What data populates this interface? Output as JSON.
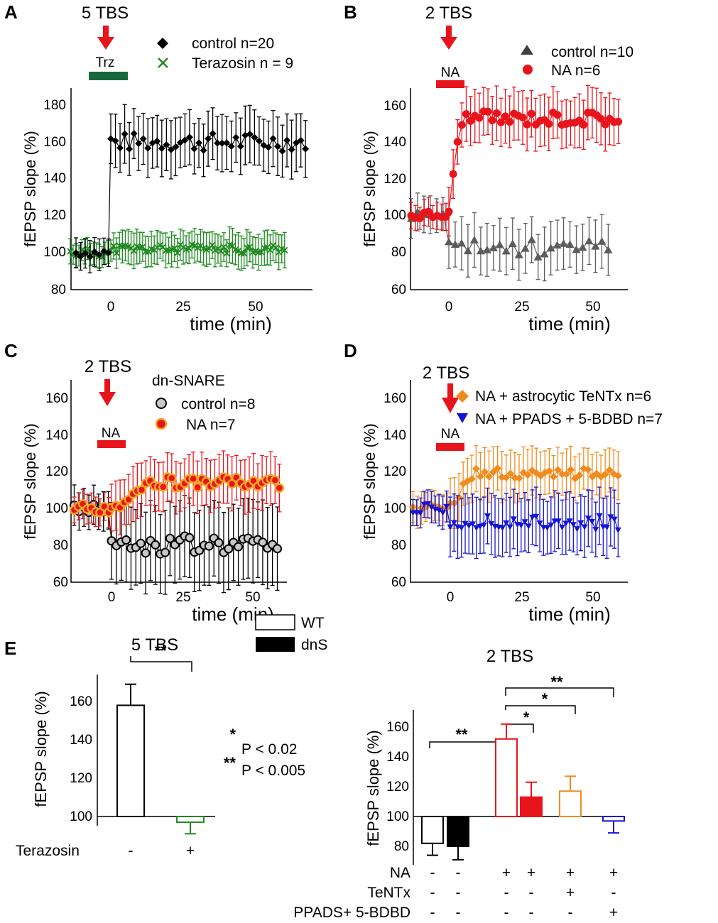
{
  "colors": {
    "black": "#000000",
    "green": "#1f8a1f",
    "red": "#e8141c",
    "gray": "#5c5c5c",
    "orange": "#f08c1e",
    "blue": "#1414d2",
    "darkgreen": "#17683c"
  },
  "chart_data": [
    {
      "panel": "A",
      "type": "line",
      "stim_label": "5 TBS",
      "bar_label": "Trz",
      "xlabel": "time (min)",
      "ylabel": "fEPSP slope (%)",
      "xticks": [
        "0",
        "25",
        "50"
      ],
      "yticks": [
        "80",
        "100",
        "120",
        "140",
        "160",
        "180"
      ],
      "xlim": [
        -14,
        70
      ],
      "ylim": [
        80,
        190
      ],
      "series": [
        {
          "name": "control",
          "legend": "control n=20",
          "baseline": 100,
          "pre_x": [
            -12,
            0
          ],
          "post_start": 0,
          "post_end": 68,
          "post_level": 160,
          "err": 13
        },
        {
          "name": "Terazosin",
          "legend": "Terazosin n = 9",
          "baseline": 100,
          "pre_x": [
            -14,
            0
          ],
          "post_start": 0,
          "post_end": 60,
          "post_level": 102,
          "err": 10
        }
      ]
    },
    {
      "panel": "B",
      "type": "line",
      "stim_label": "2 TBS",
      "bar_label": "NA",
      "xlabel": "time (min)",
      "ylabel": "fEPSP slope (%)",
      "xticks": [
        "0",
        "25",
        "50"
      ],
      "yticks": [
        "60",
        "80",
        "100",
        "120",
        "140",
        "160"
      ],
      "xlim": [
        -14,
        62
      ],
      "ylim": [
        60,
        170
      ],
      "series": [
        {
          "name": "control",
          "legend": "control n=10",
          "baseline": 100,
          "post_level": 82,
          "err": 12
        },
        {
          "name": "NA",
          "legend": "NA  n=6",
          "baseline": 100,
          "post_level": 153,
          "err": 12
        }
      ]
    },
    {
      "panel": "C",
      "type": "line",
      "stim_label": "2 TBS",
      "bar_label": "NA",
      "legend_title": "dn-SNARE",
      "xlabel": "time (min)",
      "ylabel": "fEPSP slope (%)",
      "xticks": [
        "0",
        "25",
        "50"
      ],
      "yticks": [
        "60",
        "80",
        "100",
        "120",
        "140",
        "160"
      ],
      "xlim": [
        -14,
        60
      ],
      "ylim": [
        60,
        170
      ],
      "series": [
        {
          "name": "control",
          "legend": "control  n=8",
          "baseline": 100,
          "post_level": 80,
          "err": 20
        },
        {
          "name": "NA",
          "legend": "NA      n=7",
          "baseline": 100,
          "post_level": 114,
          "err": 12
        }
      ]
    },
    {
      "panel": "D",
      "type": "line",
      "stim_label": "2 TBS",
      "bar_label": "NA",
      "xlabel": "time (min)",
      "ylabel": "fEPSP slope (%)",
      "xticks": [
        "0",
        "25",
        "50"
      ],
      "yticks": [
        "60",
        "80",
        "100",
        "120",
        "140",
        "160"
      ],
      "xlim": [
        -14,
        62
      ],
      "ylim": [
        60,
        170
      ],
      "series": [
        {
          "name": "NA + astrocytic TeNTx",
          "legend": "NA + astrocytic TeNTx  n=6",
          "baseline": 100,
          "post_level": 119,
          "err": 11
        },
        {
          "name": "NA + PPADS + 5-BDBD",
          "legend": "NA + PPADS + 5-BDBD n=7",
          "baseline": 100,
          "post_level": 92,
          "err": 14
        }
      ]
    },
    {
      "panel": "E-left",
      "type": "bar",
      "title": "5 TBS",
      "ylabel": "fEPSP slope (%)",
      "yticks": [
        "100",
        "120",
        "140",
        "160"
      ],
      "ylim": [
        95,
        170
      ],
      "row_label": "Terazosin",
      "categories": [
        "-",
        "+"
      ],
      "values": [
        158,
        97
      ],
      "errors": [
        11,
        6
      ],
      "sig": "**"
    },
    {
      "panel": "E-right",
      "type": "bar",
      "title": "2 TBS",
      "ylabel": "fEPSP slope (%)",
      "yticks": [
        "80",
        "100",
        "120",
        "140",
        "160"
      ],
      "ylim": [
        72,
        170
      ],
      "values": [
        82,
        80,
        152,
        113,
        117,
        97
      ],
      "errors": [
        8,
        9,
        10,
        10,
        10,
        8
      ],
      "styles": [
        "WT",
        "dnS",
        "WT",
        "dnS",
        "WT",
        "WT"
      ],
      "colors": [
        "#000000",
        "#000000",
        "#e8141c",
        "#e8141c",
        "#f08c1e",
        "#1414d2"
      ],
      "conditions": [
        {
          "label": "NA",
          "values": [
            "-",
            "-",
            "+",
            "+",
            "+",
            "+"
          ]
        },
        {
          "label": "TeNTx",
          "values": [
            "-",
            "-",
            "-",
            "-",
            "+",
            "-"
          ]
        },
        {
          "label": "PPADS+ 5-BDBD",
          "values": [
            "-",
            "-",
            "-",
            "-",
            "-",
            "+"
          ]
        }
      ],
      "comparisons": [
        "**",
        "*",
        "*",
        "**"
      ]
    }
  ],
  "legend_e": {
    "wt": "WT",
    "dns": "dnS"
  },
  "pvals": [
    {
      "stars": "*",
      "text": "P < 0.02"
    },
    {
      "stars": "**",
      "text": "P < 0.005"
    }
  ]
}
